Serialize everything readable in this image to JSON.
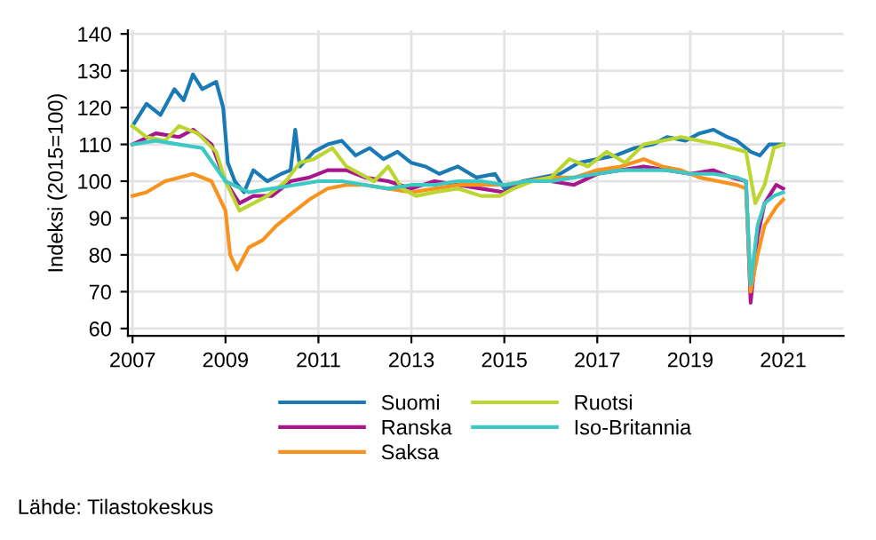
{
  "chart_data": {
    "type": "line",
    "ylabel": "Indeksi (2015=100)",
    "xlim": [
      2006.9,
      2022.3
    ],
    "xticks": [
      2007,
      2009,
      2011,
      2013,
      2015,
      2017,
      2019,
      2021
    ],
    "ylim": [
      58,
      141
    ],
    "yticks": [
      60,
      70,
      80,
      90,
      100,
      110,
      120,
      130,
      140
    ],
    "grid": true,
    "legend": "bottom",
    "line_style": "solid",
    "annotations": [
      "Lähde: Tilastokeskus"
    ],
    "series": [
      {
        "name": "Suomi",
        "color": "#1a7ab5",
        "x": [
          2007.0,
          2007.3,
          2007.6,
          2007.9,
          2008.1,
          2008.3,
          2008.5,
          2008.8,
          2008.95,
          2009.05,
          2009.2,
          2009.4,
          2009.6,
          2009.9,
          2010.2,
          2010.4,
          2010.5,
          2010.6,
          2010.9,
          2011.2,
          2011.5,
          2011.8,
          2012.1,
          2012.4,
          2012.7,
          2013.0,
          2013.3,
          2013.6,
          2014.0,
          2014.4,
          2014.8,
          2015.0,
          2015.4,
          2015.8,
          2016.2,
          2016.6,
          2017.0,
          2017.4,
          2017.8,
          2018.2,
          2018.5,
          2018.9,
          2019.2,
          2019.5,
          2019.8,
          2020.0,
          2020.3,
          2020.5,
          2020.7,
          2021.0
        ],
        "values": [
          115,
          121,
          118,
          125,
          122,
          129,
          125,
          127,
          120,
          105,
          100,
          97,
          103,
          100,
          102,
          103,
          114,
          104,
          108,
          110,
          111,
          107,
          109,
          106,
          108,
          105,
          104,
          102,
          104,
          101,
          102,
          98,
          100,
          101,
          102,
          105,
          106,
          107,
          109,
          110,
          112,
          111,
          113,
          114,
          112,
          111,
          108,
          107,
          110,
          110
        ]
      },
      {
        "name": "Ranska",
        "color": "#a8168e",
        "x": [
          2007.0,
          2007.5,
          2008.0,
          2008.3,
          2008.7,
          2009.0,
          2009.3,
          2009.6,
          2010.0,
          2010.4,
          2010.8,
          2011.2,
          2011.6,
          2012.0,
          2012.5,
          2013.0,
          2013.5,
          2014.0,
          2014.5,
          2015.0,
          2015.5,
          2016.0,
          2016.5,
          2017.0,
          2017.5,
          2018.0,
          2018.5,
          2019.0,
          2019.5,
          2019.9,
          2020.2,
          2020.3,
          2020.45,
          2020.6,
          2020.85,
          2021.0
        ],
        "values": [
          110,
          113,
          112,
          114,
          110,
          100,
          94,
          96,
          96,
          100,
          101,
          103,
          103,
          101,
          100,
          98,
          100,
          99,
          98,
          97,
          100,
          100,
          99,
          102,
          103,
          104,
          103,
          102,
          103,
          101,
          100,
          67,
          85,
          94,
          99,
          98
        ]
      },
      {
        "name": "Saksa",
        "color": "#f7931e",
        "x": [
          2007.0,
          2007.3,
          2007.7,
          2008.0,
          2008.3,
          2008.7,
          2009.0,
          2009.1,
          2009.25,
          2009.5,
          2009.8,
          2010.1,
          2010.5,
          2010.8,
          2011.2,
          2011.6,
          2012.0,
          2012.5,
          2013.0,
          2013.5,
          2014.0,
          2014.5,
          2015.0,
          2015.5,
          2016.0,
          2016.5,
          2017.0,
          2017.5,
          2018.0,
          2018.4,
          2018.8,
          2019.2,
          2019.6,
          2020.0,
          2020.2,
          2020.3,
          2020.45,
          2020.6,
          2020.85,
          2021.0
        ],
        "values": [
          96,
          97,
          100,
          101,
          102,
          100,
          92,
          80,
          76,
          82,
          84,
          88,
          92,
          95,
          98,
          99,
          99,
          98,
          97,
          98,
          99,
          99,
          99,
          100,
          101,
          101,
          103,
          104,
          106,
          104,
          103,
          101,
          100,
          99,
          98,
          70,
          80,
          88,
          93,
          95
        ]
      },
      {
        "name": "Ruotsi",
        "color": "#bcd631",
        "x": [
          2007.0,
          2007.3,
          2007.7,
          2008.0,
          2008.4,
          2008.8,
          2009.0,
          2009.3,
          2009.6,
          2009.9,
          2010.3,
          2010.6,
          2010.9,
          2011.3,
          2011.6,
          2011.9,
          2012.2,
          2012.5,
          2012.8,
          2013.1,
          2013.5,
          2014.0,
          2014.5,
          2014.9,
          2015.2,
          2015.6,
          2016.0,
          2016.4,
          2016.8,
          2017.2,
          2017.6,
          2018.0,
          2018.4,
          2018.8,
          2019.2,
          2019.6,
          2019.9,
          2020.2,
          2020.4,
          2020.6,
          2020.8,
          2021.0
        ],
        "values": [
          115,
          112,
          111,
          115,
          113,
          108,
          100,
          92,
          94,
          96,
          100,
          105,
          106,
          109,
          104,
          102,
          100,
          104,
          98,
          96,
          97,
          98,
          96,
          96,
          98,
          100,
          101,
          106,
          104,
          108,
          105,
          110,
          111,
          112,
          111,
          110,
          109,
          108,
          94,
          99,
          109,
          110
        ]
      },
      {
        "name": "Iso-Britannia",
        "color": "#3ec8c4",
        "x": [
          2007.0,
          2007.5,
          2008.0,
          2008.5,
          2009.0,
          2009.5,
          2010.0,
          2010.5,
          2011.0,
          2011.5,
          2012.0,
          2012.5,
          2013.0,
          2013.5,
          2014.0,
          2014.5,
          2015.0,
          2015.5,
          2016.0,
          2016.5,
          2017.0,
          2017.5,
          2018.0,
          2018.5,
          2019.0,
          2019.5,
          2020.0,
          2020.2,
          2020.3,
          2020.45,
          2020.6,
          2020.8,
          2021.0
        ],
        "values": [
          110,
          111,
          110,
          109,
          100,
          97,
          98,
          99,
          100,
          100,
          99,
          98,
          99,
          99,
          100,
          100,
          99,
          100,
          100,
          101,
          102,
          103,
          103,
          103,
          102,
          102,
          101,
          100,
          72,
          88,
          94,
          96,
          97
        ]
      }
    ]
  }
}
